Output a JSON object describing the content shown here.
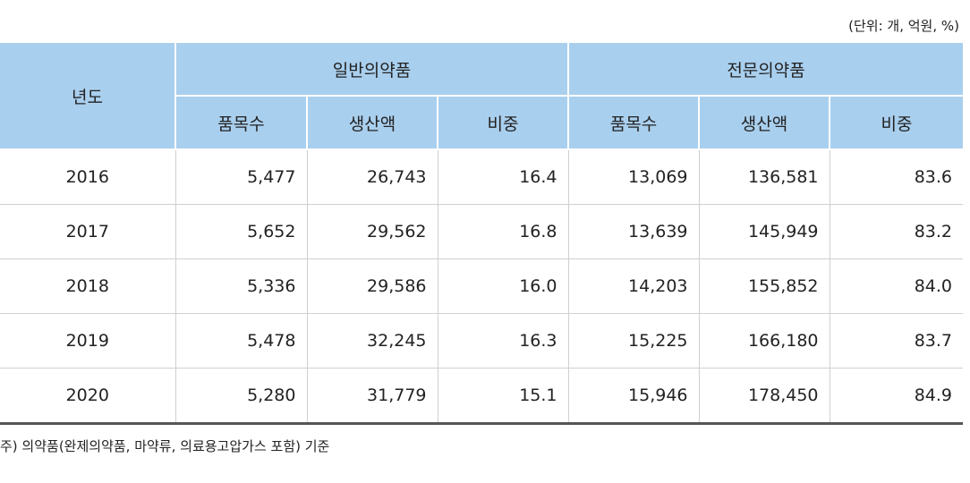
{
  "unit_note": "(단위: 개, 억원, %)",
  "header": {
    "year": "년도",
    "groups": [
      "일반의약품",
      "전문의약품"
    ],
    "subcols": [
      "품목수",
      "생산액",
      "비중",
      "품목수",
      "생산액",
      "비중"
    ]
  },
  "rows": [
    {
      "year": "2016",
      "cells": [
        "5,477",
        "26,743",
        "16.4",
        "13,069",
        "136,581",
        "83.6"
      ]
    },
    {
      "year": "2017",
      "cells": [
        "5,652",
        "29,562",
        "16.8",
        "13,639",
        "145,949",
        "83.2"
      ]
    },
    {
      "year": "2018",
      "cells": [
        "5,336",
        "29,586",
        "16.0",
        "14,203",
        "155,852",
        "84.0"
      ]
    },
    {
      "year": "2019",
      "cells": [
        "5,478",
        "32,245",
        "16.3",
        "15,225",
        "166,180",
        "83.7"
      ]
    },
    {
      "year": "2020",
      "cells": [
        "5,280",
        "31,779",
        "15.1",
        "15,946",
        "178,450",
        "84.9"
      ]
    }
  ],
  "footnote": "주) 의약품(완제의약품, 마약류, 의료용고압가스 포함) 기준",
  "colors": {
    "header_bg": "#a9cfee",
    "rule": "#555555"
  }
}
